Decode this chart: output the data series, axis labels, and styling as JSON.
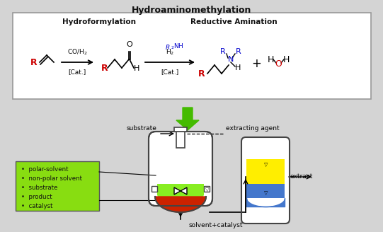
{
  "title": "Hydroaminomethylation",
  "bg_color": "#d4d4d4",
  "box_bg": "#ffffff",
  "box_edge": "#999999",
  "green_arrow_color": "#44bb00",
  "reactor_fill": "#88ee22",
  "reactor_red_fill": "#cc2200",
  "reactor_edge": "#444444",
  "extractor_yellow": "#ffee00",
  "extractor_blue": "#4477cc",
  "extractor_edge": "#444444",
  "legend_bg": "#88dd11",
  "legend_edge": "#555555",
  "legend_items": [
    "polar-solvent",
    "non-polar solvent",
    "substrate",
    "product",
    "catalyst"
  ],
  "text_substrate": "substrate",
  "text_extracting": "extracting agent",
  "text_extract": "extract",
  "text_solvent": "solvent+catalyst",
  "label_hydroformylation": "Hydroformylation",
  "label_reductive": "Reductive Amination",
  "red_color": "#cc0000",
  "blue_color": "#0000cc",
  "black_color": "#111111",
  "title_fontsize": 9,
  "label_fontsize": 7.5,
  "small_fontsize": 6.5
}
